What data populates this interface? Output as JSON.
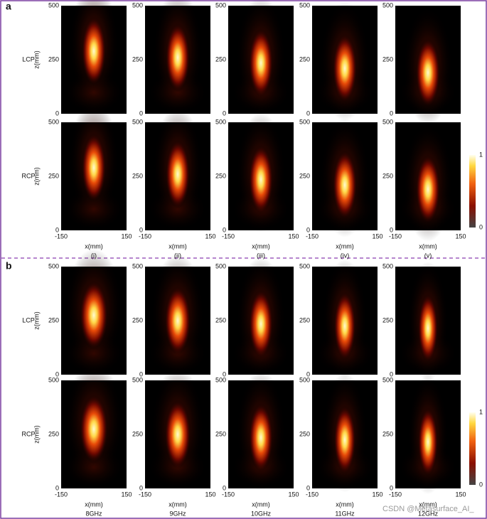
{
  "panels": [
    {
      "label": "a",
      "rows": [
        "LCP",
        "RCP"
      ],
      "columns": [
        "(i)",
        "(ii)",
        "(iii)",
        "(iv)",
        "(v)"
      ]
    },
    {
      "label": "b",
      "rows": [
        "LCP",
        "RCP"
      ],
      "columns": [
        "8GHz",
        "9GHz",
        "10GHz",
        "11GHz",
        "12GHz"
      ]
    }
  ],
  "axes": {
    "y_label": "z(mm)",
    "y_ticks": [
      "0",
      "250",
      "500"
    ],
    "x_label": "x(mm)",
    "x_ticks": [
      "-150",
      "150"
    ]
  },
  "colorbar": {
    "ticks": [
      "0",
      "1"
    ]
  },
  "watermark": "CSDN @Metasurface_AI_"
}
